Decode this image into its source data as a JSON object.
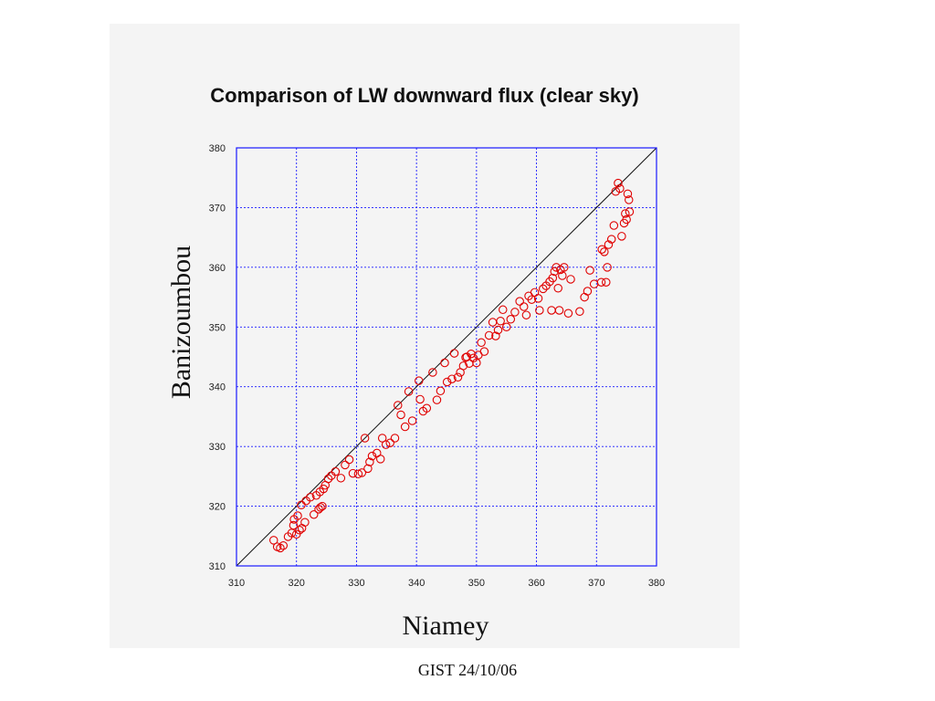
{
  "footer": "GIST 24/10/06",
  "chart_data": {
    "type": "scatter",
    "title": "Comparison of LW downward flux (clear sky)",
    "xlabel": "Niamey",
    "ylabel": "Banizoumbou",
    "xlim": [
      310,
      380
    ],
    "ylim": [
      310,
      380
    ],
    "xticks": [
      310,
      320,
      330,
      340,
      350,
      360,
      370,
      380
    ],
    "yticks": [
      310,
      320,
      330,
      340,
      350,
      360,
      370,
      380
    ],
    "grid": true,
    "reference_line": "y = x",
    "point_color": "#e00000",
    "grid_color": "#1a1aff",
    "points": [
      [
        316.2,
        314.3
      ],
      [
        316.8,
        313.2
      ],
      [
        317.3,
        313.0
      ],
      [
        317.8,
        313.4
      ],
      [
        318.6,
        314.9
      ],
      [
        319.2,
        315.5
      ],
      [
        319.5,
        316.8
      ],
      [
        319.6,
        317.8
      ],
      [
        320.0,
        315.3
      ],
      [
        320.2,
        318.4
      ],
      [
        320.5,
        316.0
      ],
      [
        320.9,
        316.3
      ],
      [
        320.8,
        320.2
      ],
      [
        321.4,
        317.3
      ],
      [
        321.6,
        320.9
      ],
      [
        322.3,
        321.5
      ],
      [
        322.9,
        318.6
      ],
      [
        323.3,
        321.8
      ],
      [
        323.7,
        319.5
      ],
      [
        324.0,
        319.8
      ],
      [
        323.9,
        322.4
      ],
      [
        324.3,
        320.0
      ],
      [
        324.5,
        322.9
      ],
      [
        324.8,
        323.5
      ],
      [
        325.3,
        324.6
      ],
      [
        325.8,
        325.1
      ],
      [
        326.5,
        325.8
      ],
      [
        327.4,
        324.7
      ],
      [
        328.1,
        326.9
      ],
      [
        328.8,
        327.8
      ],
      [
        329.4,
        325.5
      ],
      [
        330.3,
        325.4
      ],
      [
        330.9,
        325.6
      ],
      [
        331.4,
        331.4
      ],
      [
        331.9,
        326.3
      ],
      [
        332.2,
        327.4
      ],
      [
        332.6,
        328.4
      ],
      [
        333.4,
        328.9
      ],
      [
        334.0,
        327.9
      ],
      [
        334.3,
        331.4
      ],
      [
        334.9,
        330.3
      ],
      [
        335.6,
        330.6
      ],
      [
        336.4,
        331.4
      ],
      [
        336.9,
        336.9
      ],
      [
        337.4,
        335.3
      ],
      [
        338.1,
        333.3
      ],
      [
        338.7,
        339.2
      ],
      [
        339.3,
        334.3
      ],
      [
        340.4,
        341.0
      ],
      [
        340.6,
        337.9
      ],
      [
        341.1,
        335.9
      ],
      [
        341.7,
        336.4
      ],
      [
        342.7,
        342.4
      ],
      [
        343.4,
        337.8
      ],
      [
        344.0,
        339.3
      ],
      [
        344.7,
        344.0
      ],
      [
        345.1,
        340.8
      ],
      [
        345.9,
        341.3
      ],
      [
        346.3,
        345.6
      ],
      [
        346.9,
        341.6
      ],
      [
        347.3,
        342.4
      ],
      [
        347.8,
        343.5
      ],
      [
        348.2,
        344.9
      ],
      [
        348.4,
        345.0
      ],
      [
        348.8,
        343.9
      ],
      [
        349.1,
        345.5
      ],
      [
        349.5,
        344.8
      ],
      [
        350.0,
        344.0
      ],
      [
        350.3,
        345.3
      ],
      [
        350.8,
        347.4
      ],
      [
        351.3,
        345.9
      ],
      [
        352.1,
        348.6
      ],
      [
        352.7,
        350.8
      ],
      [
        353.2,
        348.5
      ],
      [
        353.6,
        349.5
      ],
      [
        354.0,
        351.0
      ],
      [
        354.4,
        352.9
      ],
      [
        355.0,
        350.0
      ],
      [
        355.7,
        351.3
      ],
      [
        356.4,
        352.5
      ],
      [
        357.2,
        354.3
      ],
      [
        357.9,
        353.4
      ],
      [
        358.3,
        352.0
      ],
      [
        358.7,
        355.2
      ],
      [
        359.2,
        354.6
      ],
      [
        359.7,
        355.8
      ],
      [
        360.3,
        354.8
      ],
      [
        360.5,
        352.8
      ],
      [
        361.1,
        356.4
      ],
      [
        361.6,
        356.9
      ],
      [
        362.2,
        357.6
      ],
      [
        362.5,
        352.8
      ],
      [
        362.7,
        358.2
      ],
      [
        363.0,
        359.3
      ],
      [
        363.3,
        360.0
      ],
      [
        363.6,
        356.5
      ],
      [
        364.0,
        359.6
      ],
      [
        364.3,
        358.6
      ],
      [
        363.8,
        352.8
      ],
      [
        364.6,
        360.0
      ],
      [
        365.3,
        352.3
      ],
      [
        365.7,
        358.0
      ],
      [
        367.2,
        352.6
      ],
      [
        368.0,
        355.0
      ],
      [
        368.5,
        356.0
      ],
      [
        368.9,
        359.5
      ],
      [
        369.6,
        357.2
      ],
      [
        370.8,
        357.5
      ],
      [
        370.9,
        363.0
      ],
      [
        371.3,
        362.6
      ],
      [
        371.6,
        357.5
      ],
      [
        371.8,
        360.0
      ],
      [
        372.0,
        363.8
      ],
      [
        372.5,
        364.7
      ],
      [
        372.9,
        367.0
      ],
      [
        373.2,
        372.7
      ],
      [
        373.6,
        374.1
      ],
      [
        373.9,
        373.2
      ],
      [
        374.2,
        365.2
      ],
      [
        374.6,
        367.4
      ],
      [
        374.8,
        369.0
      ],
      [
        375.0,
        368.0
      ],
      [
        375.2,
        372.3
      ],
      [
        375.4,
        371.3
      ],
      [
        375.5,
        369.3
      ]
    ]
  }
}
